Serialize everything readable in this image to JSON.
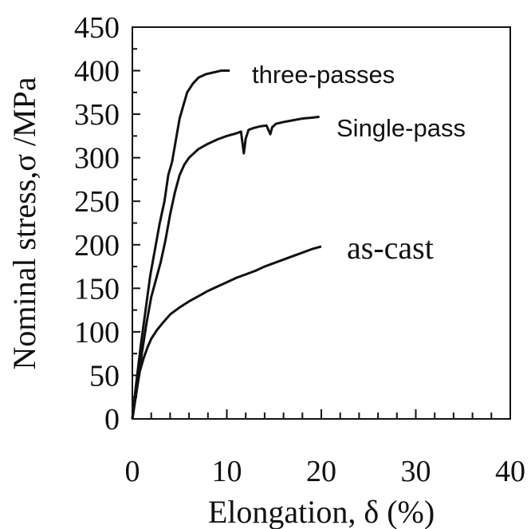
{
  "chart_data": {
    "type": "line",
    "xlabel": "Elongation, δ (%)",
    "ylabel": "Nominal stress,σ /MPa",
    "xlim": [
      0,
      40
    ],
    "ylim": [
      0,
      450
    ],
    "x_ticks": [
      0,
      10,
      20,
      30,
      40
    ],
    "y_ticks": [
      0,
      50,
      100,
      150,
      200,
      250,
      300,
      350,
      400,
      450
    ],
    "x_tick_labels": [
      "0",
      "10",
      "20",
      "30",
      "40"
    ],
    "y_tick_labels": [
      "0",
      "50",
      "100",
      "150",
      "200",
      "250",
      "300",
      "350",
      "400",
      "450"
    ],
    "grid": false,
    "legend": "inline labels",
    "series": [
      {
        "name": "three-passes",
        "x": [
          0,
          0.4,
          0.9,
          1.4,
          1.9,
          2.4,
          2.9,
          3.4,
          3.8,
          4.2,
          4.6,
          5.0,
          5.4,
          5.8,
          6.4,
          7.0,
          7.8,
          8.6,
          9.4,
          10.3
        ],
        "y": [
          0,
          40,
          85,
          125,
          165,
          195,
          225,
          250,
          280,
          295,
          320,
          345,
          360,
          375,
          385,
          392,
          396,
          398,
          400,
          400
        ]
      },
      {
        "name": "Single-pass",
        "x": [
          0,
          0.5,
          1.0,
          1.5,
          2.0,
          2.5,
          3.0,
          3.5,
          4.0,
          4.5,
          5.0,
          5.5,
          6.0,
          7.0,
          8.0,
          9.0,
          10.0,
          11.0,
          11.5,
          11.8,
          12.0,
          12.3,
          12.8,
          13.5,
          14.2,
          14.6,
          14.8,
          15.2,
          16.0,
          17.0,
          18.0,
          19.0,
          19.8
        ],
        "y": [
          0,
          35,
          75,
          110,
          140,
          160,
          180,
          205,
          235,
          260,
          280,
          292,
          300,
          310,
          316,
          321,
          325,
          328,
          330,
          305,
          322,
          332,
          334,
          336,
          337,
          327,
          335,
          339,
          341,
          343,
          345,
          346,
          347
        ]
      },
      {
        "name": "as-cast",
        "x": [
          0,
          0.4,
          0.8,
          1.2,
          1.6,
          2.0,
          2.6,
          3.2,
          4.0,
          5.0,
          6.0,
          7.0,
          8.0,
          9.0,
          10.0,
          11.0,
          12.0,
          13.0,
          14.0,
          15.0,
          16.0,
          17.0,
          18.0,
          19.0,
          20.0
        ],
        "y": [
          0,
          30,
          55,
          70,
          82,
          92,
          102,
          110,
          120,
          128,
          135,
          141,
          147,
          152,
          157,
          162,
          166,
          170,
          175,
          179,
          183,
          187,
          191,
          195,
          198
        ]
      }
    ]
  }
}
